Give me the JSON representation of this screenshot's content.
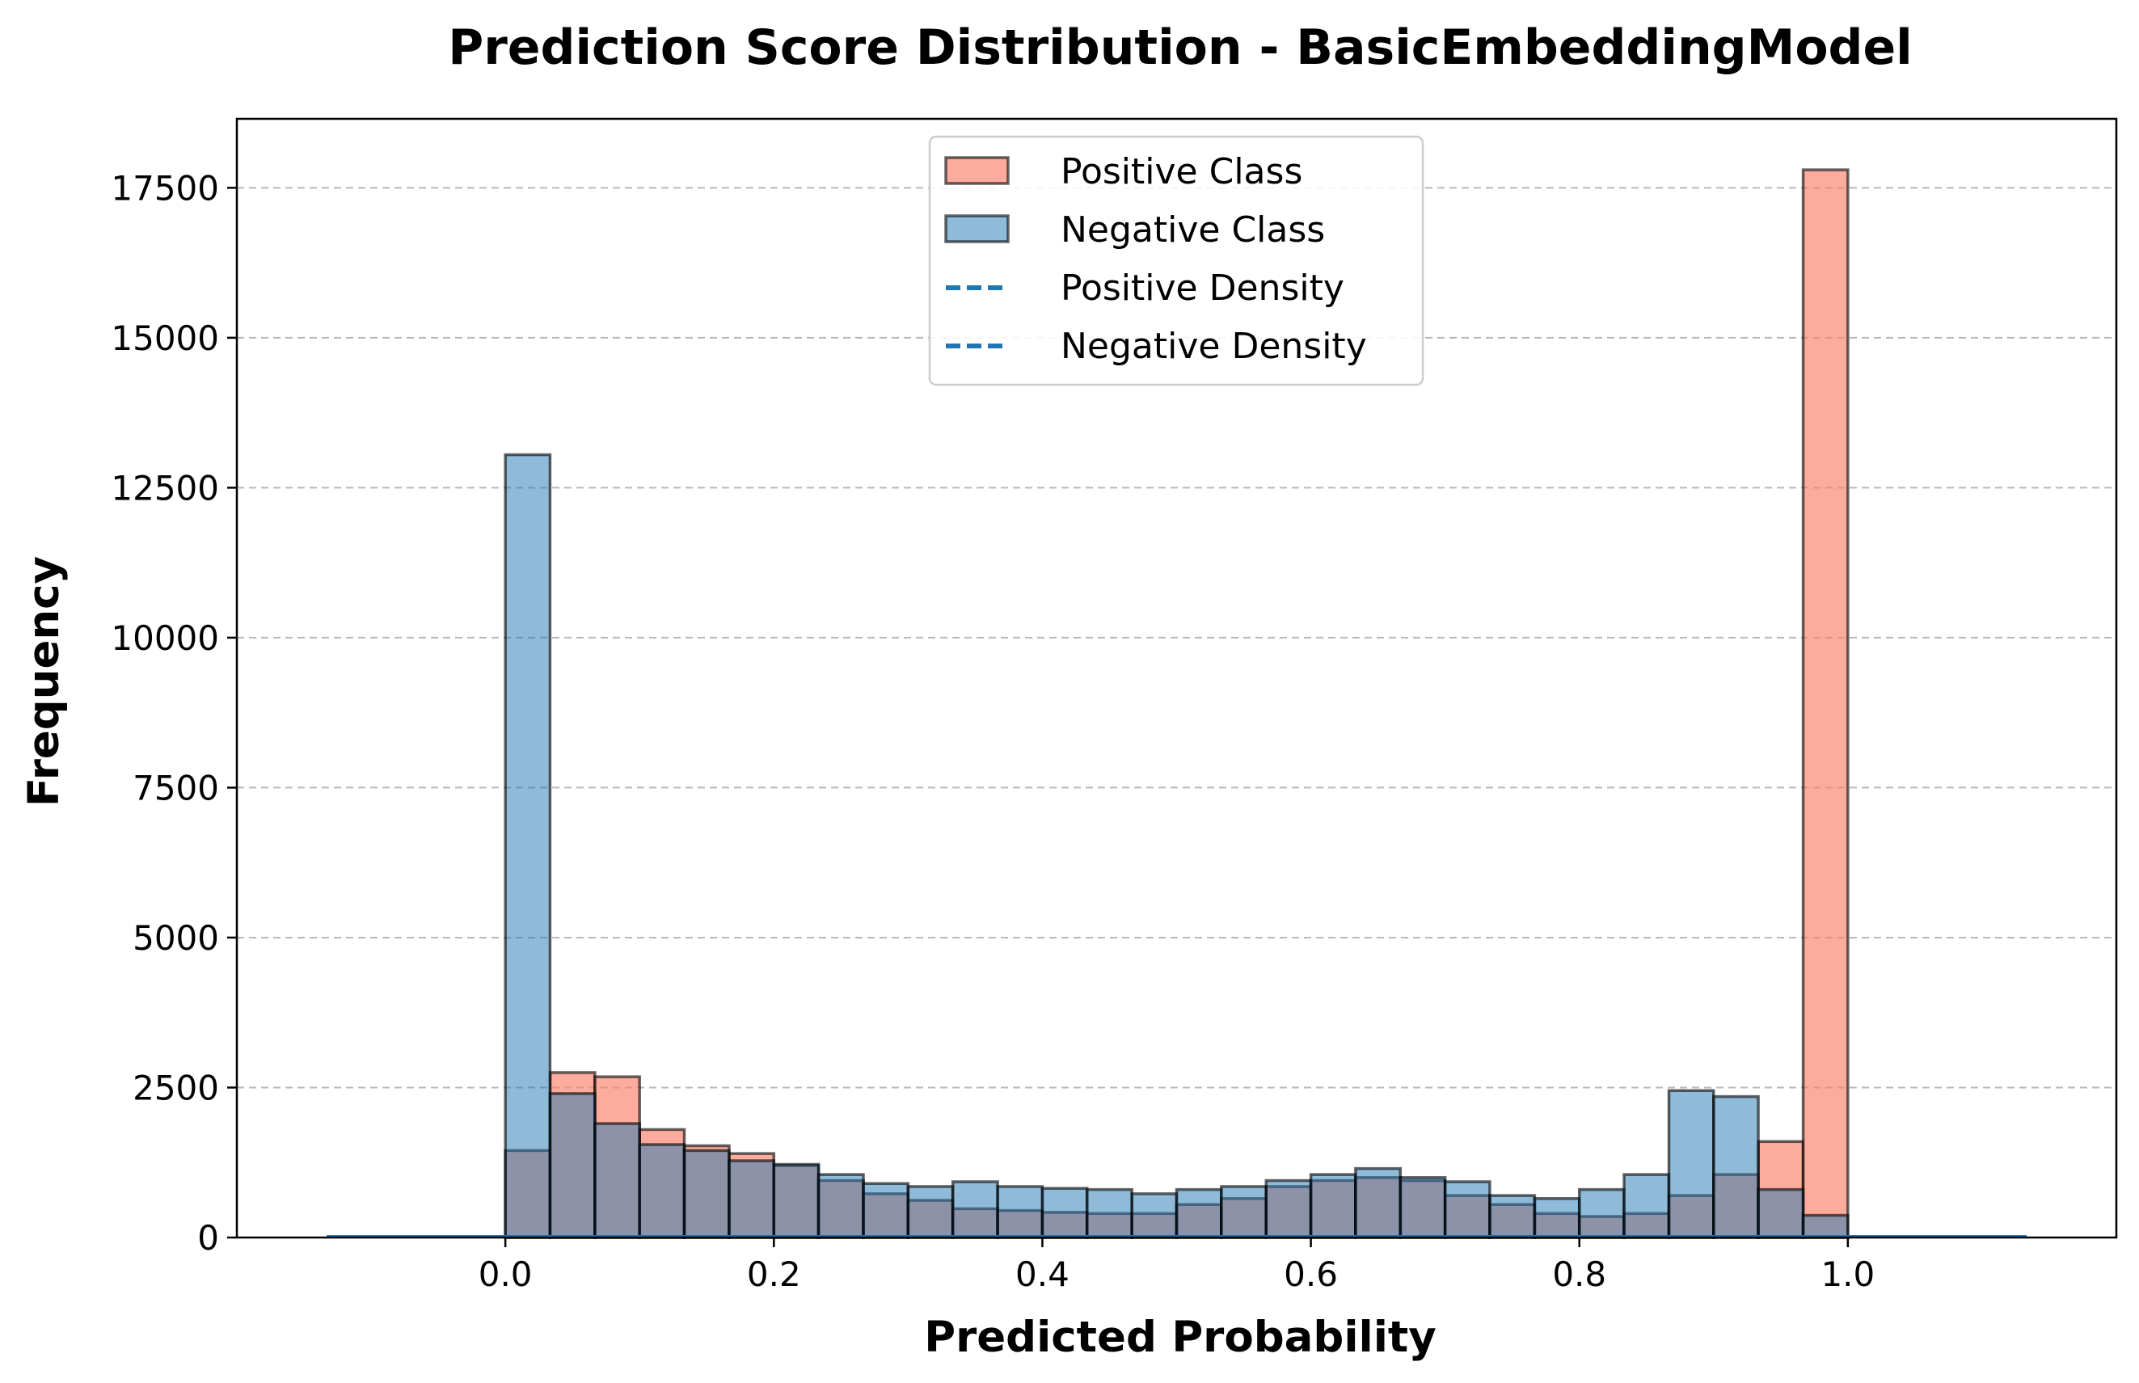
{
  "chart_data": {
    "type": "bar",
    "subtype": "overlapping-histogram",
    "title": "Prediction Score Distribution - BasicEmbeddingModel",
    "xlabel": "Predicted Probability",
    "ylabel": "Frequency",
    "xlim": [
      -0.2,
      1.2
    ],
    "ylim": [
      0,
      18650
    ],
    "x_ticks": [
      0.0,
      0.2,
      0.4,
      0.6,
      0.8,
      1.0
    ],
    "x_tick_labels": [
      "0.0",
      "0.2",
      "0.4",
      "0.6",
      "0.8",
      "1.0"
    ],
    "y_ticks": [
      0,
      2500,
      5000,
      7500,
      10000,
      12500,
      15000,
      17500
    ],
    "y_tick_labels": [
      "0",
      "2500",
      "5000",
      "7500",
      "10000",
      "12500",
      "15000",
      "17500"
    ],
    "grid": "y-dashed",
    "legend_position": "upper center",
    "bin_edges": [
      0.0,
      0.0333,
      0.0667,
      0.1,
      0.1333,
      0.1667,
      0.2,
      0.2333,
      0.2667,
      0.3,
      0.3333,
      0.3667,
      0.4,
      0.4333,
      0.4667,
      0.5,
      0.5333,
      0.5667,
      0.6,
      0.6333,
      0.6667,
      0.7,
      0.7333,
      0.7667,
      0.8,
      0.8333,
      0.8667,
      0.9,
      0.9333,
      0.9667,
      1.0
    ],
    "series": [
      {
        "name": "Positive Class",
        "kind": "histogram",
        "color": "#fa8068",
        "opacity": 0.65,
        "edgecolor": "#000000",
        "values": [
          1450,
          2750,
          2680,
          1800,
          1530,
          1400,
          1200,
          950,
          730,
          620,
          480,
          450,
          420,
          400,
          400,
          550,
          650,
          850,
          950,
          1000,
          950,
          700,
          550,
          400,
          350,
          400,
          700,
          1050,
          1600,
          17800
        ]
      },
      {
        "name": "Negative Class",
        "kind": "histogram",
        "color": "#1f77b4",
        "opacity": 0.5,
        "edgecolor": "#000000",
        "values": [
          13050,
          2400,
          1900,
          1550,
          1450,
          1280,
          1220,
          1050,
          900,
          850,
          930,
          850,
          820,
          800,
          730,
          800,
          850,
          950,
          1050,
          1150,
          1000,
          930,
          700,
          650,
          800,
          1050,
          2450,
          2350,
          800,
          370
        ]
      },
      {
        "name": "Positive Density",
        "kind": "density-line",
        "color": "#1f77b4",
        "dashed": true,
        "x_range": [
          -0.133,
          1.133
        ],
        "values_near_zero": true
      },
      {
        "name": "Negative Density",
        "kind": "density-line",
        "color": "#1f77b4",
        "dashed": true,
        "x_range": [
          -0.133,
          1.133
        ],
        "values_near_zero": true
      }
    ]
  }
}
